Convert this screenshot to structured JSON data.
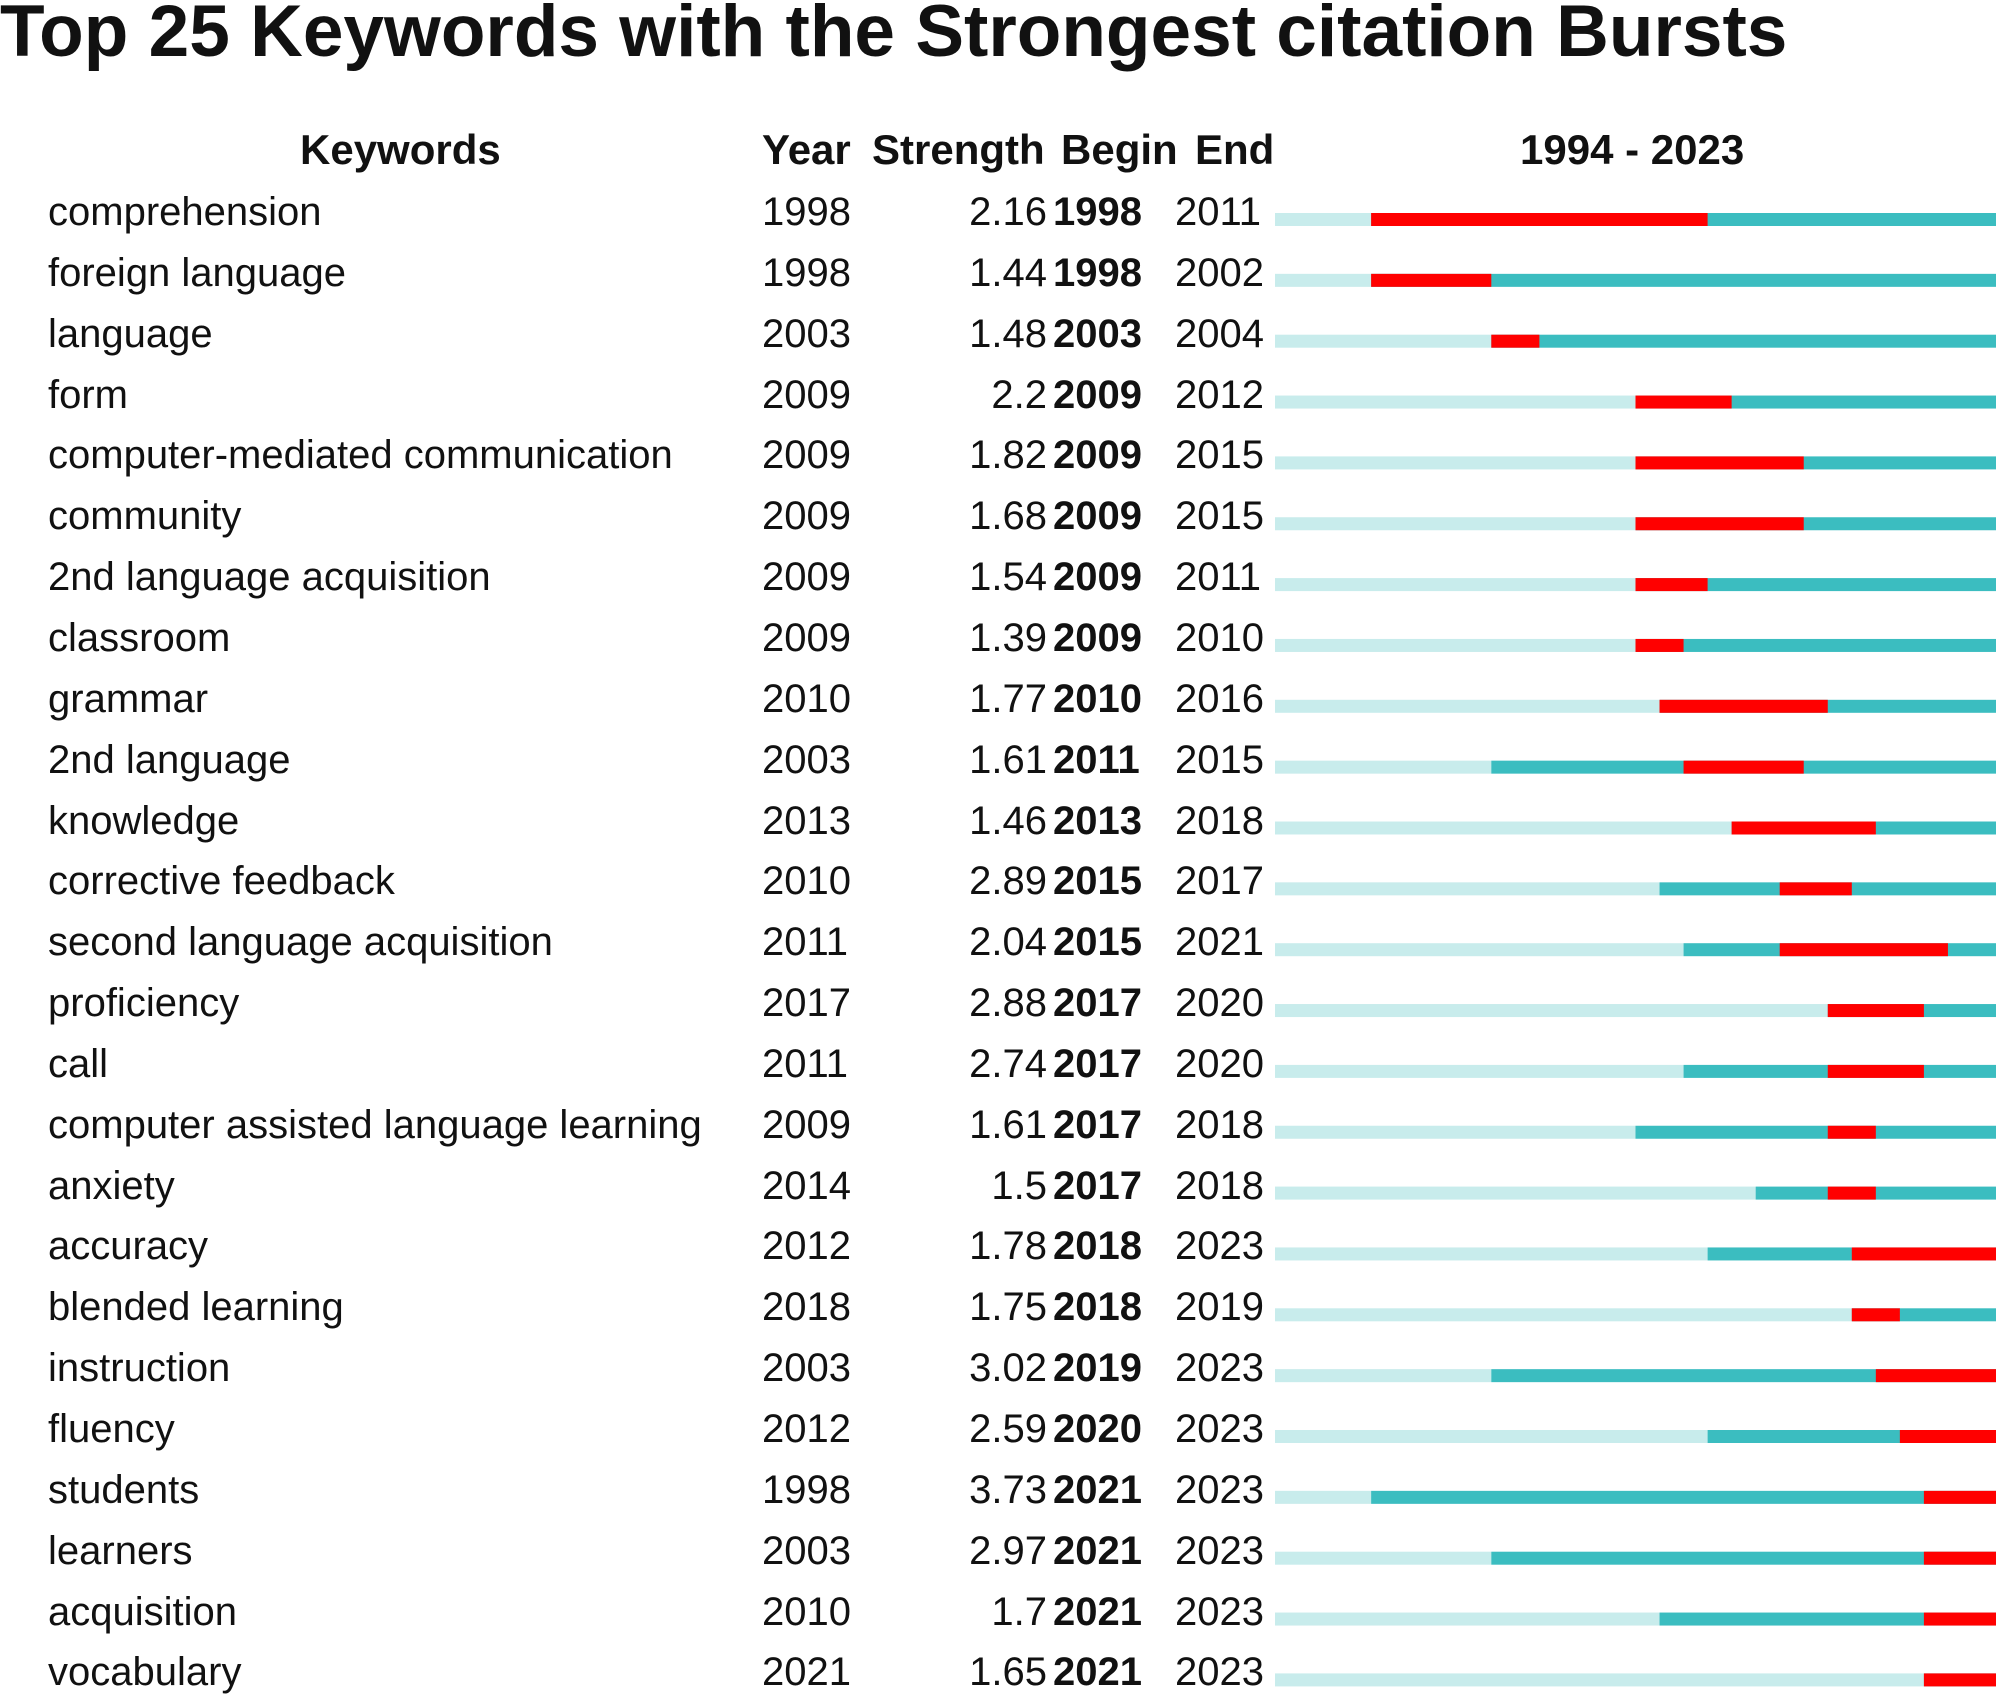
{
  "chart_data": {
    "type": "table",
    "title": "Top 25 Keywords with the Strongest citation Bursts",
    "columns": [
      "Keywords",
      "Year",
      "Strength",
      "Begin",
      "End",
      "1994 - 2023"
    ],
    "range": [
      1994,
      2023
    ],
    "colors": {
      "before": "#c8ecec",
      "active": "#3bbdc0",
      "burst": "#ff0000"
    },
    "rows": [
      {
        "keyword": "comprehension",
        "year": "1998",
        "strength": "2.16",
        "begin": "1998",
        "end": "2011"
      },
      {
        "keyword": "foreign language",
        "year": "1998",
        "strength": "1.44",
        "begin": "1998",
        "end": "2002"
      },
      {
        "keyword": "language",
        "year": "2003",
        "strength": "1.48",
        "begin": "2003",
        "end": "2004"
      },
      {
        "keyword": "form",
        "year": "2009",
        "strength": "2.2",
        "begin": "2009",
        "end": "2012"
      },
      {
        "keyword": "computer-mediated communication",
        "year": "2009",
        "strength": "1.82",
        "begin": "2009",
        "end": "2015"
      },
      {
        "keyword": "community",
        "year": "2009",
        "strength": "1.68",
        "begin": "2009",
        "end": "2015"
      },
      {
        "keyword": "2nd language acquisition",
        "year": "2009",
        "strength": "1.54",
        "begin": "2009",
        "end": "2011"
      },
      {
        "keyword": "classroom",
        "year": "2009",
        "strength": "1.39",
        "begin": "2009",
        "end": "2010"
      },
      {
        "keyword": "grammar",
        "year": "2010",
        "strength": "1.77",
        "begin": "2010",
        "end": "2016"
      },
      {
        "keyword": "2nd language",
        "year": "2003",
        "strength": "1.61",
        "begin": "2011",
        "end": "2015"
      },
      {
        "keyword": "knowledge",
        "year": "2013",
        "strength": "1.46",
        "begin": "2013",
        "end": "2018"
      },
      {
        "keyword": "corrective feedback",
        "year": "2010",
        "strength": "2.89",
        "begin": "2015",
        "end": "2017"
      },
      {
        "keyword": "second language acquisition",
        "year": "2011",
        "strength": "2.04",
        "begin": "2015",
        "end": "2021"
      },
      {
        "keyword": "proficiency",
        "year": "2017",
        "strength": "2.88",
        "begin": "2017",
        "end": "2020"
      },
      {
        "keyword": "call",
        "year": "2011",
        "strength": "2.74",
        "begin": "2017",
        "end": "2020"
      },
      {
        "keyword": "computer assisted language learning",
        "year": "2009",
        "strength": "1.61",
        "begin": "2017",
        "end": "2018"
      },
      {
        "keyword": "anxiety",
        "year": "2014",
        "strength": "1.5",
        "begin": "2017",
        "end": "2018"
      },
      {
        "keyword": "accuracy",
        "year": "2012",
        "strength": "1.78",
        "begin": "2018",
        "end": "2023"
      },
      {
        "keyword": "blended learning",
        "year": "2018",
        "strength": "1.75",
        "begin": "2018",
        "end": "2019"
      },
      {
        "keyword": "instruction",
        "year": "2003",
        "strength": "3.02",
        "begin": "2019",
        "end": "2023"
      },
      {
        "keyword": "fluency",
        "year": "2012",
        "strength": "2.59",
        "begin": "2020",
        "end": "2023"
      },
      {
        "keyword": "students",
        "year": "1998",
        "strength": "3.73",
        "begin": "2021",
        "end": "2023"
      },
      {
        "keyword": "learners",
        "year": "2003",
        "strength": "2.97",
        "begin": "2021",
        "end": "2023"
      },
      {
        "keyword": "acquisition",
        "year": "2010",
        "strength": "1.7",
        "begin": "2021",
        "end": "2023"
      },
      {
        "keyword": "vocabulary",
        "year": "2021",
        "strength": "1.65",
        "begin": "2021",
        "end": "2023"
      }
    ]
  }
}
